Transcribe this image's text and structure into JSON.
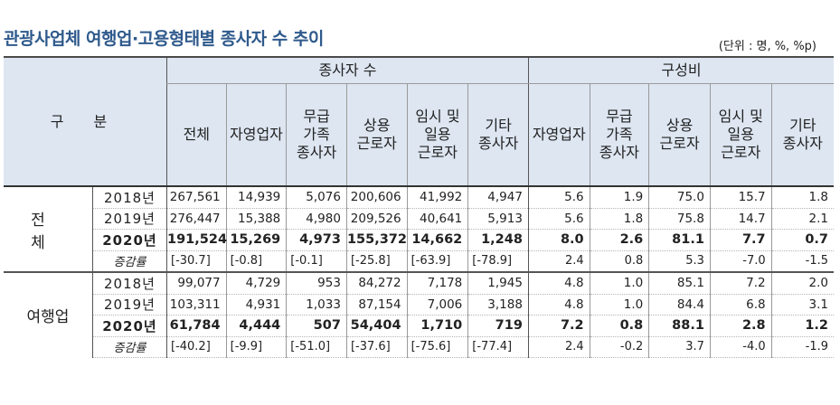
{
  "title": "관광사업체 여행업·고용형태별 종사자 수 추이",
  "unit": "(단위 : 명, %, %p)",
  "header": {
    "stub": "구 분",
    "group1": "종사자 수",
    "group2": "구성비",
    "cols1": [
      "전체",
      "자영업자",
      "무급\n가족\n종사자",
      "상용\n근로자",
      "임시 및\n일용\n근로자",
      "기타\n종사자"
    ],
    "cols2": [
      "자영업자",
      "무급\n가족\n종사자",
      "상용\n근로자",
      "임시 및\n일용\n근로자",
      "기타\n종사자"
    ]
  },
  "groups": [
    {
      "category": "전 체",
      "rows": [
        {
          "label": "2018년",
          "values": [
            "267,561",
            "14,939",
            "5,076",
            "200,606",
            "41,992",
            "4,947",
            "5.6",
            "1.9",
            "75.0",
            "15.7",
            "1.8"
          ]
        },
        {
          "label": "2019년",
          "values": [
            "276,447",
            "15,388",
            "4,980",
            "209,526",
            "40,641",
            "5,913",
            "5.6",
            "1.8",
            "75.8",
            "14.7",
            "2.1"
          ]
        },
        {
          "label": "2020년",
          "values": [
            "191,524",
            "15,269",
            "4,973",
            "155,372",
            "14,662",
            "1,248",
            "8.0",
            "2.6",
            "81.1",
            "7.7",
            "0.7"
          ]
        },
        {
          "label": "증감률",
          "values": [
            "[-30.7]",
            "[-0.8]",
            "[-0.1]",
            "[-25.8]",
            "[-63.9]",
            "[-78.9]",
            "2.4",
            "0.8",
            "5.3",
            "-7.0",
            "-1.5"
          ]
        }
      ]
    },
    {
      "category": "여행업",
      "rows": [
        {
          "label": "2018년",
          "values": [
            "99,077",
            "4,729",
            "953",
            "84,272",
            "7,178",
            "1,945",
            "4.8",
            "1.0",
            "85.1",
            "7.2",
            "2.0"
          ]
        },
        {
          "label": "2019년",
          "values": [
            "103,311",
            "4,931",
            "1,033",
            "87,154",
            "7,006",
            "3,188",
            "4.8",
            "1.0",
            "84.4",
            "6.8",
            "3.1"
          ]
        },
        {
          "label": "2020년",
          "values": [
            "61,784",
            "4,444",
            "507",
            "54,404",
            "1,710",
            "719",
            "7.2",
            "0.8",
            "88.1",
            "2.8",
            "1.2"
          ]
        },
        {
          "label": "증감률",
          "values": [
            "[-40.2]",
            "[-9.9]",
            "[-51.0]",
            "[-37.6]",
            "[-75.6]",
            "[-77.4]",
            "2.4",
            "-0.2",
            "3.7",
            "-4.0",
            "-1.9"
          ]
        }
      ]
    }
  ]
}
